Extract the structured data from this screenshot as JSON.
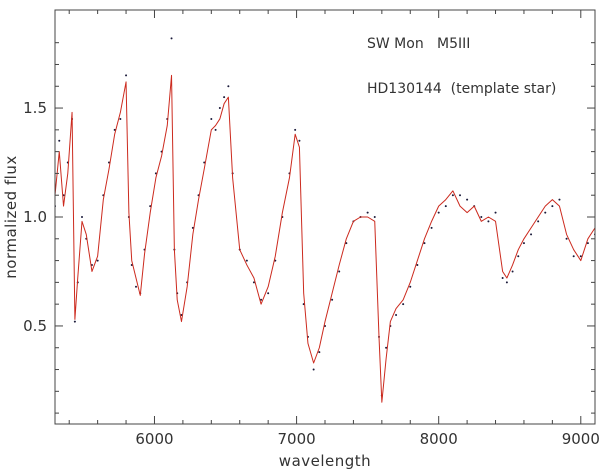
{
  "chart_data": {
    "type": "line",
    "title": "",
    "xlabel": "wavelength",
    "ylabel": "normalized flux",
    "xlim": [
      5300,
      9100
    ],
    "ylim": [
      0.05,
      1.95
    ],
    "xticks": [
      6000,
      7000,
      8000,
      9000
    ],
    "yticks": [
      0.5,
      1.0,
      1.5
    ],
    "xtick_labels": [
      "6000",
      "7000",
      "8000",
      "9000"
    ],
    "ytick_labels": [
      "0.5",
      "1.0",
      "1.5"
    ],
    "grid": false,
    "annotations": [
      "SW Mon   M5III",
      "HD130144  (template star)"
    ],
    "series": [
      {
        "style": "points",
        "color": "#1a1a3a",
        "x": [
          5300,
          5330,
          5360,
          5390,
          5420,
          5440,
          5460,
          5490,
          5520,
          5560,
          5600,
          5640,
          5680,
          5720,
          5760,
          5800,
          5820,
          5840,
          5870,
          5900,
          5930,
          5970,
          6010,
          6050,
          6090,
          6120,
          6140,
          6160,
          6190,
          6230,
          6270,
          6310,
          6350,
          6400,
          6430,
          6460,
          6490,
          6520,
          6550,
          6600,
          6650,
          6700,
          6750,
          6800,
          6850,
          6900,
          6950,
          6990,
          7020,
          7050,
          7080,
          7120,
          7160,
          7200,
          7250,
          7300,
          7350,
          7400,
          7450,
          7500,
          7550,
          7580,
          7600,
          7630,
          7660,
          7700,
          7750,
          7800,
          7850,
          7900,
          7950,
          8000,
          8050,
          8100,
          8150,
          8200,
          8250,
          8300,
          8350,
          8400,
          8450,
          8480,
          8520,
          8560,
          8600,
          8650,
          8700,
          8750,
          8800,
          8850,
          8900,
          8950,
          9000,
          9050,
          9100
        ],
        "y": [
          1.05,
          1.35,
          1.1,
          1.25,
          1.45,
          0.52,
          0.7,
          1.0,
          0.9,
          0.78,
          0.8,
          1.1,
          1.25,
          1.4,
          1.45,
          1.65,
          1.0,
          0.78,
          0.68,
          0.65,
          0.85,
          1.05,
          1.2,
          1.3,
          1.45,
          1.82,
          0.85,
          0.65,
          0.55,
          0.7,
          0.95,
          1.1,
          1.25,
          1.45,
          1.4,
          1.5,
          1.55,
          1.6,
          1.2,
          0.85,
          0.8,
          0.7,
          0.62,
          0.65,
          0.8,
          1.0,
          1.2,
          1.4,
          1.35,
          0.6,
          0.45,
          0.3,
          0.38,
          0.5,
          0.62,
          0.75,
          0.88,
          0.98,
          1.0,
          1.02,
          1.0,
          0.45,
          0.18,
          0.4,
          0.5,
          0.55,
          0.6,
          0.68,
          0.78,
          0.88,
          0.95,
          1.02,
          1.05,
          1.1,
          1.1,
          1.08,
          1.05,
          1.0,
          0.98,
          1.02,
          0.72,
          0.7,
          0.75,
          0.82,
          0.88,
          0.92,
          0.98,
          1.02,
          1.05,
          1.08,
          0.9,
          0.82,
          0.82,
          0.88,
          0.92
        ]
      },
      {
        "style": "line",
        "color": "#cc2a1e",
        "x": [
          5300,
          5330,
          5360,
          5390,
          5420,
          5440,
          5460,
          5490,
          5520,
          5560,
          5600,
          5640,
          5680,
          5720,
          5760,
          5800,
          5820,
          5840,
          5870,
          5900,
          5930,
          5970,
          6010,
          6050,
          6090,
          6120,
          6140,
          6160,
          6190,
          6230,
          6270,
          6310,
          6350,
          6400,
          6430,
          6460,
          6490,
          6520,
          6550,
          6600,
          6650,
          6700,
          6750,
          6800,
          6850,
          6900,
          6950,
          6990,
          7020,
          7050,
          7080,
          7120,
          7160,
          7200,
          7250,
          7300,
          7350,
          7400,
          7450,
          7500,
          7550,
          7580,
          7600,
          7630,
          7660,
          7700,
          7750,
          7800,
          7850,
          7900,
          7950,
          8000,
          8050,
          8100,
          8150,
          8200,
          8250,
          8300,
          8350,
          8400,
          8450,
          8480,
          8520,
          8560,
          8600,
          8650,
          8700,
          8750,
          8800,
          8850,
          8900,
          8950,
          9000,
          9050,
          9100
        ],
        "y": [
          1.1,
          1.3,
          1.05,
          1.2,
          1.48,
          0.53,
          0.72,
          0.98,
          0.92,
          0.75,
          0.82,
          1.08,
          1.22,
          1.38,
          1.48,
          1.62,
          1.02,
          0.8,
          0.72,
          0.64,
          0.83,
          1.02,
          1.18,
          1.28,
          1.42,
          1.65,
          0.85,
          0.62,
          0.52,
          0.68,
          0.92,
          1.08,
          1.22,
          1.4,
          1.42,
          1.45,
          1.52,
          1.55,
          1.18,
          0.85,
          0.78,
          0.72,
          0.6,
          0.68,
          0.82,
          1.02,
          1.18,
          1.38,
          1.32,
          0.65,
          0.42,
          0.33,
          0.4,
          0.52,
          0.65,
          0.78,
          0.9,
          0.98,
          1.0,
          1.0,
          0.98,
          0.45,
          0.15,
          0.35,
          0.52,
          0.58,
          0.62,
          0.7,
          0.8,
          0.9,
          0.98,
          1.05,
          1.08,
          1.12,
          1.05,
          1.02,
          1.05,
          0.98,
          1.0,
          0.98,
          0.75,
          0.72,
          0.78,
          0.85,
          0.9,
          0.95,
          1.0,
          1.05,
          1.08,
          1.05,
          0.92,
          0.85,
          0.8,
          0.9,
          0.95
        ]
      }
    ]
  }
}
